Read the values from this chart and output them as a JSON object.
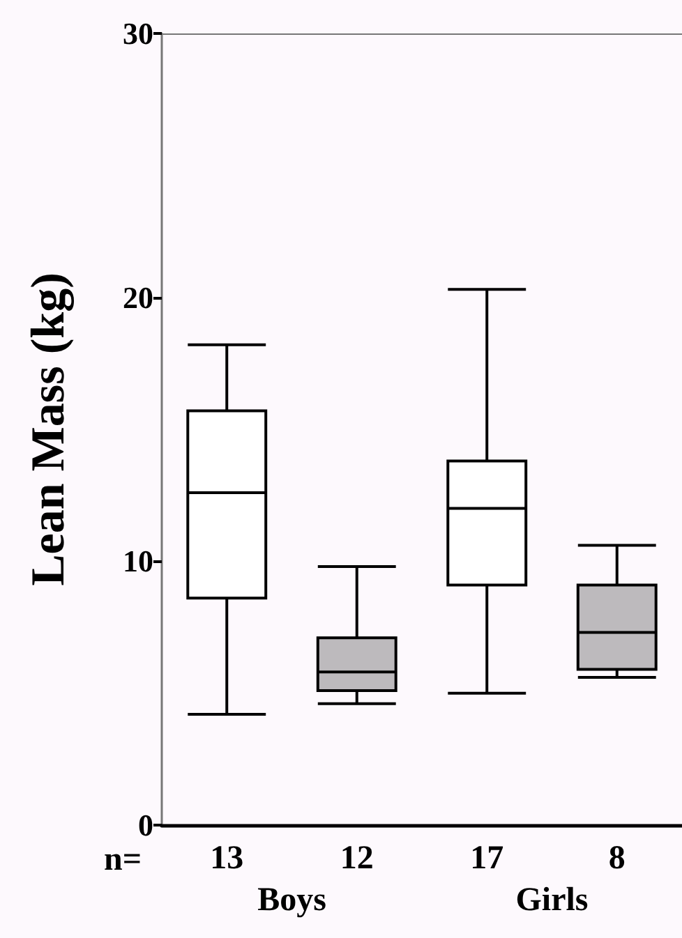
{
  "chart_data": {
    "type": "box",
    "ylabel": "Lean Mass (kg)",
    "categories": [
      "13",
      "12",
      "17",
      "8"
    ],
    "boxes": [
      {
        "low": 4.2,
        "q1": 8.6,
        "median": 12.6,
        "q3": 15.7,
        "high": 18.2
      },
      {
        "low": 4.6,
        "q1": 5.1,
        "median": 5.8,
        "q3": 7.1,
        "high": 9.8
      },
      {
        "low": 5.0,
        "q1": 9.1,
        "median": 12.0,
        "q3": 13.8,
        "high": 20.3
      },
      {
        "low": 5.6,
        "q1": 5.9,
        "median": 7.3,
        "q3": 9.1,
        "high": 10.6
      }
    ],
    "colors": [
      "#ffffff",
      "#bdbabd",
      "#ffffff",
      "#bdbabd"
    ],
    "ylim": [
      0,
      30
    ],
    "yticks": [
      0,
      10,
      20,
      30
    ],
    "annotations": [
      "n=",
      "Boys",
      "Girls"
    ]
  }
}
